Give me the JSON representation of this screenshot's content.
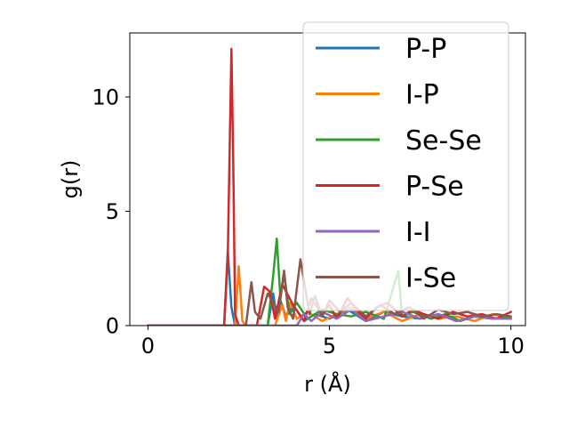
{
  "chart_data": {
    "type": "line",
    "xlabel": "r (Å)",
    "ylabel": "g(r)",
    "xlim": [
      -0.5,
      10.4
    ],
    "ylim": [
      0,
      12.8
    ],
    "xticks": [
      0,
      5,
      10
    ],
    "yticks": [
      0,
      5,
      10
    ],
    "xtick_labels": [
      "0",
      "5",
      "10"
    ],
    "ytick_labels": [
      "0",
      "5",
      "10"
    ],
    "grid": false,
    "legend_position": "upper right",
    "series": [
      {
        "name": "P-P",
        "color": "#1f77b4",
        "x": [
          0,
          1.0,
          2.0,
          2.1,
          2.2,
          2.3,
          2.4,
          2.5,
          3.0,
          3.3,
          3.45,
          3.55,
          3.65,
          3.8,
          4.0,
          4.3,
          4.6,
          5.0,
          5.5,
          6.0,
          6.5,
          7.0,
          7.5,
          8.0,
          8.5,
          9.0,
          9.5,
          10.0
        ],
        "y": [
          0,
          0,
          0,
          0,
          3.3,
          0.8,
          0,
          0,
          0,
          0,
          1.4,
          0.3,
          1.1,
          0.4,
          0.9,
          0.2,
          0.5,
          0.3,
          0.7,
          0.2,
          0.6,
          0.4,
          0.3,
          0.5,
          0.2,
          0.4,
          0.3,
          0.3
        ]
      },
      {
        "name": "I-P",
        "color": "#ff7f0e",
        "x": [
          0,
          1.0,
          2.0,
          2.3,
          2.4,
          2.5,
          2.6,
          2.7,
          3.0,
          3.5,
          3.7,
          3.8,
          3.9,
          4.1,
          4.4,
          4.8,
          5.2,
          5.6,
          6.0,
          6.5,
          7.0,
          7.5,
          8.0,
          8.5,
          9.0,
          9.5,
          10.0
        ],
        "y": [
          0,
          0,
          0,
          0,
          0,
          2.6,
          0.2,
          0,
          0,
          0,
          0.9,
          0.2,
          1.0,
          0.3,
          0.6,
          0.2,
          0.5,
          0.8,
          0.3,
          0.6,
          0.2,
          0.5,
          0.3,
          0.4,
          0.2,
          0.5,
          0.3
        ]
      },
      {
        "name": "Se-Se",
        "color": "#2ca02c",
        "x": [
          0,
          1.0,
          2.0,
          3.0,
          3.3,
          3.45,
          3.55,
          3.65,
          3.75,
          3.9,
          4.1,
          4.4,
          4.8,
          5.2,
          5.6,
          6.0,
          6.5,
          6.9,
          7.0,
          7.3,
          7.8,
          8.2,
          8.6,
          9.0,
          9.5,
          10.0
        ],
        "y": [
          0,
          0,
          0,
          0,
          0,
          2.2,
          3.8,
          1.2,
          2.3,
          0.5,
          1.0,
          0.3,
          0.7,
          0.5,
          0.4,
          0.6,
          0.3,
          2.4,
          0.4,
          0.6,
          0.3,
          0.5,
          0.2,
          0.4,
          0.3,
          0.4
        ]
      },
      {
        "name": "P-Se",
        "color": "#d62728",
        "x": [
          0,
          1.0,
          2.0,
          2.1,
          2.2,
          2.3,
          2.35,
          2.4,
          2.5,
          3.0,
          3.2,
          3.35,
          3.5,
          3.7,
          4.0,
          4.3,
          4.5,
          4.8,
          5.0,
          5.2,
          5.5,
          5.8,
          6.0,
          6.3,
          6.6,
          7.0,
          7.3,
          7.6,
          8.0,
          8.4,
          8.8,
          9.2,
          9.6,
          10.0
        ],
        "y": [
          0,
          0,
          0,
          0,
          3.0,
          12.1,
          7.0,
          0.5,
          0,
          0,
          1.7,
          1.5,
          0.3,
          1.8,
          0.9,
          0.2,
          1.2,
          0.5,
          0.9,
          0.3,
          1.2,
          0.6,
          0.3,
          0.8,
          1.0,
          0.4,
          0.7,
          0.5,
          0.3,
          0.6,
          0.4,
          0.5,
          0.3,
          0.6
        ]
      },
      {
        "name": "I-I",
        "color": "#9467bd",
        "x": [
          0,
          1.0,
          2.0,
          3.0,
          4.0,
          4.1,
          4.3,
          4.5,
          4.8,
          5.2,
          5.6,
          6.0,
          6.5,
          7.0,
          7.5,
          8.0,
          8.5,
          9.0,
          9.5,
          10.0
        ],
        "y": [
          0,
          0,
          0,
          0,
          0,
          0,
          0.5,
          0.2,
          0.6,
          0.3,
          0.7,
          0.2,
          0.4,
          0.6,
          0.3,
          0.5,
          0.2,
          0.4,
          0.3,
          0.3
        ]
      },
      {
        "name": "I-Se",
        "color": "#8c564b",
        "x": [
          0,
          1.0,
          2.0,
          2.7,
          2.85,
          2.95,
          3.1,
          3.3,
          3.6,
          3.75,
          3.85,
          4.0,
          4.2,
          4.45,
          4.6,
          4.8,
          5.0,
          5.3,
          5.6,
          6.0,
          6.4,
          6.8,
          7.2,
          7.6,
          8.0,
          8.4,
          8.8,
          9.2,
          9.6,
          10.0
        ],
        "y": [
          0,
          0,
          0,
          0,
          1.9,
          0.6,
          0.3,
          1.4,
          0.6,
          2.4,
          0.8,
          0.3,
          2.9,
          0.5,
          1.3,
          0.4,
          1.1,
          0.6,
          1.0,
          0.4,
          0.9,
          0.5,
          0.8,
          0.3,
          0.7,
          0.5,
          0.6,
          0.4,
          0.5,
          0.4
        ]
      }
    ]
  }
}
